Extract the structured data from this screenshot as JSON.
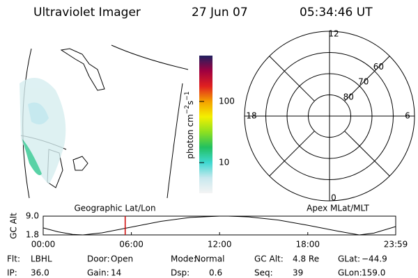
{
  "header": {
    "instrument": "Ultraviolet Imager",
    "date": "27 Jun 07",
    "time": "05:34:46 UT"
  },
  "colorbar": {
    "label": {
      "base": "photon cm",
      "exp1": "−2",
      "mid": "s",
      "exp2": "−1"
    },
    "log": true,
    "lim": [
      3.16,
      562
    ],
    "ticks": [
      10,
      100
    ],
    "colors": [
      "#f4f4f4",
      "#c8e8ee",
      "#3ed8d0",
      "#22c060",
      "#8ee020",
      "#f4f000",
      "#f4a000",
      "#e02020",
      "#a00040",
      "#202060"
    ]
  },
  "map": {
    "title": "Geographic Lat/Lon"
  },
  "polar": {
    "title": "Apex MLat/MLT",
    "lat_range": [
      50,
      90
    ],
    "rings": [
      60,
      70,
      80
    ],
    "mlt": [
      12,
      18,
      0,
      6
    ]
  },
  "chart_data": {
    "type": "line",
    "y_label": "GC Alt",
    "x": [
      0,
      1,
      2,
      2.7,
      4,
      6,
      8,
      10,
      12,
      12.6,
      14,
      16,
      18,
      20,
      21.5,
      22.5,
      23.983
    ],
    "series": [
      {
        "color": "#000000",
        "values": [
          4.5,
          3.0,
          2.0,
          1.8,
          2.6,
          4.8,
          7.0,
          8.5,
          9.0,
          9.0,
          8.7,
          7.5,
          5.5,
          3.3,
          1.8,
          2.5,
          5.0
        ]
      }
    ],
    "marker_x": 5.578,
    "marker_color": "#cc0000",
    "xlim": [
      0,
      23.983
    ],
    "ylim": [
      1.8,
      9.0
    ],
    "xticks": [
      {
        "value": 0,
        "label": "00:00"
      },
      {
        "value": 6,
        "label": "06:00"
      },
      {
        "value": 12,
        "label": "12:00"
      },
      {
        "value": 18,
        "label": "18:00"
      },
      {
        "value": 23.983,
        "label": "23:59"
      }
    ],
    "yticks": [
      {
        "value": 9,
        "label": "9.0"
      },
      1.8
    ]
  },
  "footer": {
    "rows": [
      [
        [
          "Flt:",
          "LBHL"
        ],
        [
          "Door:",
          "Open"
        ],
        [
          "Mode:",
          "Normal"
        ],
        [
          "GC Alt:",
          "4.8 Re"
        ],
        [
          "GLat:",
          "−44.9"
        ]
      ],
      [
        [
          "IP:",
          "36.0"
        ],
        [
          "Gain:",
          "14"
        ],
        [
          "Dsp:",
          "0.6"
        ],
        [
          "Seq:",
          "39"
        ],
        [
          "GLon:",
          "159.0"
        ]
      ]
    ]
  }
}
